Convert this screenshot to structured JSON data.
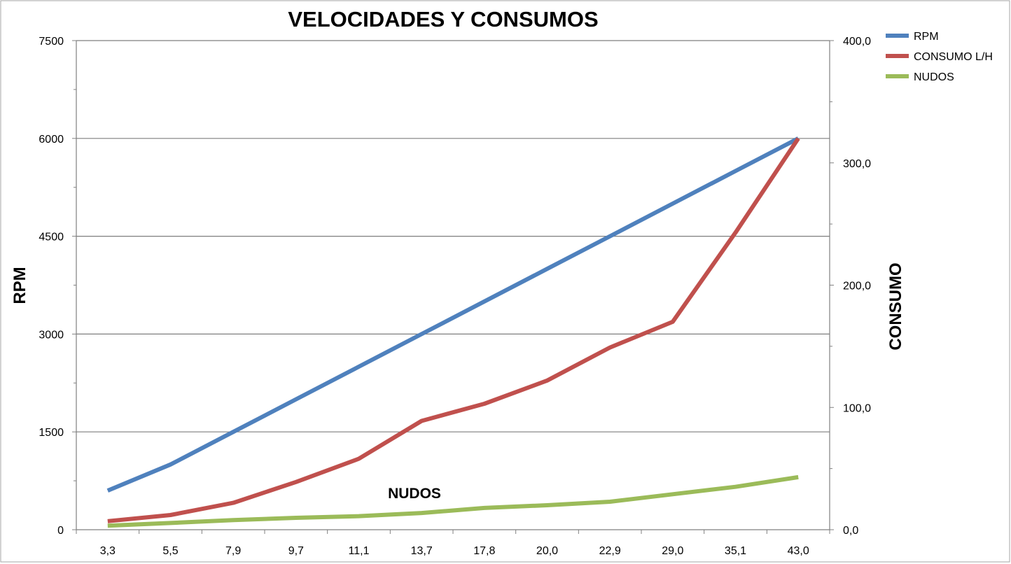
{
  "chart_data": {
    "type": "line",
    "title": "VELOCIDADES Y CONSUMOS",
    "xlabel": "",
    "ylabel": "RPM",
    "y2label": "CONSUMO",
    "annotation": "NUDOS",
    "categories": [
      "3,3",
      "5,5",
      "7,9",
      "9,7",
      "11,1",
      "13,7",
      "17,8",
      "20,0",
      "22,9",
      "29,0",
      "35,1",
      "43,0"
    ],
    "ylim": [
      0,
      7500
    ],
    "y2lim": [
      0,
      400
    ],
    "y_ticks": [
      "0",
      "1500",
      "3000",
      "4500",
      "6000",
      "7500"
    ],
    "y2_ticks": [
      "0,0",
      "100,0",
      "200,0",
      "300,0",
      "400,0"
    ],
    "grid": true,
    "legend_position": "right",
    "series": [
      {
        "name": "RPM",
        "axis": "left",
        "color": "#4f81bd",
        "values": [
          600,
          1000,
          1500,
          2000,
          2500,
          3000,
          3500,
          4000,
          4500,
          5000,
          5500,
          6000
        ]
      },
      {
        "name": "CONSUMO L/H",
        "axis": "right",
        "color": "#c0504d",
        "values": [
          7,
          12,
          22,
          39,
          58,
          89,
          103,
          122,
          149,
          170,
          243,
          320
        ]
      },
      {
        "name": "NUDOS",
        "axis": "right",
        "color": "#9bbb59",
        "values": [
          3.3,
          5.5,
          7.9,
          9.7,
          11.1,
          13.7,
          17.8,
          20.0,
          22.9,
          29.0,
          35.1,
          43.0
        ]
      }
    ]
  }
}
